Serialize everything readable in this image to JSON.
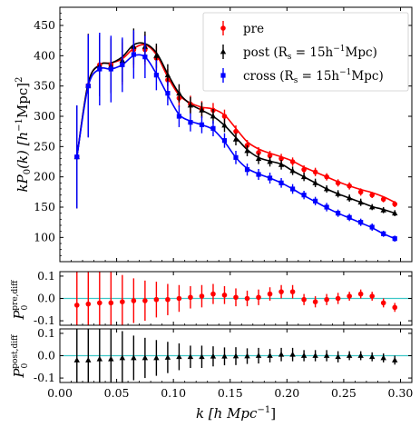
{
  "chart_data": [
    {
      "type": "line",
      "panel": "main",
      "xlabel": "k [h Mpc^-1]",
      "ylabel": "kP_0(k) [h^-1Mpc]^2",
      "xlim": [
        0.0,
        0.31
      ],
      "ylim": [
        60,
        480
      ],
      "x_ticks": [
        "0.00",
        "0.05",
        "0.10",
        "0.15",
        "0.20",
        "0.25",
        "0.30"
      ],
      "y_ticks": [
        "100",
        "150",
        "200",
        "250",
        "300",
        "350",
        "400",
        "450"
      ],
      "legend_position": "top-right",
      "series": [
        {
          "name": "pre",
          "marker": "circle",
          "color": "#ff0000",
          "x": [
            0.015,
            0.025,
            0.035,
            0.045,
            0.055,
            0.065,
            0.075,
            0.085,
            0.095,
            0.105,
            0.115,
            0.125,
            0.135,
            0.145,
            0.155,
            0.165,
            0.175,
            0.185,
            0.195,
            0.205,
            0.215,
            0.225,
            0.235,
            0.245,
            0.255,
            0.265,
            0.275,
            0.285,
            0.295
          ],
          "y": [
            233,
            351,
            385,
            385,
            387,
            410,
            410,
            396,
            360,
            330,
            320,
            312,
            310,
            300,
            275,
            252,
            240,
            235,
            230,
            225,
            212,
            208,
            200,
            190,
            185,
            175,
            170,
            163,
            155
          ],
          "err": [
            85,
            85,
            50,
            45,
            35,
            30,
            25,
            20,
            18,
            15,
            14,
            13,
            12,
            11,
            10,
            9,
            9,
            8,
            8,
            7,
            7,
            7,
            6,
            6,
            6,
            6,
            5,
            5,
            5
          ],
          "model": [
            233,
            355,
            385,
            388,
            395,
            412,
            418,
            402,
            365,
            335,
            322,
            315,
            312,
            302,
            280,
            258,
            246,
            239,
            233,
            226,
            216,
            208,
            200,
            192,
            185,
            179,
            174,
            167,
            158
          ]
        },
        {
          "name": "post (R_s = 15h^-1Mpc)",
          "marker": "triangle",
          "color": "#000000",
          "x": [
            0.015,
            0.025,
            0.035,
            0.045,
            0.055,
            0.065,
            0.075,
            0.085,
            0.095,
            0.105,
            0.115,
            0.125,
            0.135,
            0.145,
            0.155,
            0.165,
            0.175,
            0.185,
            0.195,
            0.205,
            0.215,
            0.225,
            0.235,
            0.245,
            0.255,
            0.265,
            0.275,
            0.285,
            0.295
          ],
          "y": [
            233,
            351,
            383,
            383,
            392,
            415,
            415,
            400,
            368,
            338,
            318,
            310,
            300,
            285,
            262,
            243,
            230,
            225,
            220,
            210,
            200,
            190,
            180,
            172,
            165,
            158,
            150,
            145,
            140
          ],
          "err": [
            85,
            85,
            50,
            45,
            35,
            30,
            25,
            20,
            18,
            15,
            14,
            13,
            12,
            11,
            10,
            9,
            9,
            8,
            8,
            7,
            7,
            7,
            6,
            6,
            6,
            6,
            5,
            5,
            5
          ],
          "model": [
            233,
            355,
            385,
            388,
            398,
            418,
            420,
            405,
            370,
            338,
            320,
            310,
            300,
            285,
            265,
            245,
            232,
            226,
            221,
            210,
            200,
            190,
            180,
            172,
            165,
            158,
            151,
            146,
            140
          ]
        },
        {
          "name": "cross (R_s = 15h^-1Mpc)",
          "marker": "square",
          "color": "#0000ff",
          "x": [
            0.015,
            0.025,
            0.035,
            0.045,
            0.055,
            0.065,
            0.075,
            0.085,
            0.095,
            0.105,
            0.115,
            0.125,
            0.135,
            0.145,
            0.155,
            0.165,
            0.175,
            0.185,
            0.195,
            0.205,
            0.215,
            0.225,
            0.235,
            0.245,
            0.255,
            0.265,
            0.275,
            0.285,
            0.295
          ],
          "y": [
            233,
            350,
            378,
            378,
            385,
            402,
            398,
            368,
            338,
            300,
            290,
            286,
            280,
            260,
            232,
            212,
            204,
            198,
            190,
            180,
            170,
            160,
            150,
            140,
            133,
            125,
            117,
            106,
            98
          ],
          "err": [
            85,
            85,
            60,
            55,
            45,
            40,
            35,
            25,
            20,
            18,
            15,
            14,
            13,
            12,
            11,
            10,
            9,
            9,
            8,
            8,
            7,
            7,
            7,
            6,
            6,
            6,
            6,
            5,
            5
          ],
          "model": [
            233,
            350,
            378,
            378,
            385,
            400,
            398,
            370,
            335,
            303,
            292,
            286,
            278,
            258,
            232,
            214,
            205,
            198,
            190,
            180,
            169,
            159,
            149,
            140,
            132,
            124,
            116,
            106,
            98
          ]
        }
      ]
    },
    {
      "type": "scatter",
      "panel": "residual-pre",
      "ylabel": "P_0^pre,diff",
      "ylim": [
        -0.12,
        0.12
      ],
      "y_ticks": [
        "0.1",
        "0.0",
        "-0.1"
      ],
      "reference_line": 0.0,
      "color": "#ff0000",
      "x": [
        0.015,
        0.025,
        0.035,
        0.045,
        0.055,
        0.065,
        0.075,
        0.085,
        0.095,
        0.105,
        0.115,
        0.125,
        0.135,
        0.145,
        0.155,
        0.165,
        0.175,
        0.185,
        0.195,
        0.205,
        0.215,
        0.225,
        0.235,
        0.245,
        0.255,
        0.265,
        0.275,
        0.285,
        0.295
      ],
      "y": [
        -0.03,
        -0.025,
        -0.02,
        -0.02,
        -0.015,
        -0.01,
        -0.01,
        -0.005,
        -0.005,
        0.0,
        0.005,
        0.01,
        0.02,
        0.015,
        0.005,
        0.0,
        0.005,
        0.02,
        0.03,
        0.03,
        -0.005,
        -0.015,
        -0.005,
        0.0,
        0.01,
        0.02,
        0.01,
        -0.02,
        -0.04
      ],
      "err": [
        0.3,
        0.25,
        0.2,
        0.18,
        0.12,
        0.1,
        0.09,
        0.08,
        0.07,
        0.06,
        0.05,
        0.05,
        0.045,
        0.04,
        0.04,
        0.035,
        0.035,
        0.03,
        0.03,
        0.03,
        0.025,
        0.025,
        0.025,
        0.025,
        0.02,
        0.02,
        0.02,
        0.02,
        0.02
      ]
    },
    {
      "type": "scatter",
      "panel": "residual-post",
      "ylabel": "P_0^post,diff",
      "xlabel": "k [h Mpc^-1]",
      "xlim": [
        0.0,
        0.31
      ],
      "x_ticks": [
        "0.00",
        "0.05",
        "0.10",
        "0.15",
        "0.20",
        "0.25",
        "0.30"
      ],
      "ylim": [
        -0.12,
        0.12
      ],
      "y_ticks": [
        "0.1",
        "0.0",
        "-0.1"
      ],
      "reference_line": 0.0,
      "color": "#000000",
      "x": [
        0.015,
        0.025,
        0.035,
        0.045,
        0.055,
        0.065,
        0.075,
        0.085,
        0.095,
        0.105,
        0.115,
        0.125,
        0.135,
        0.145,
        0.155,
        0.165,
        0.175,
        0.185,
        0.195,
        0.205,
        0.215,
        0.225,
        0.235,
        0.245,
        0.255,
        0.265,
        0.275,
        0.285,
        0.295
      ],
      "y": [
        -0.02,
        -0.02,
        -0.015,
        -0.015,
        -0.01,
        -0.01,
        -0.01,
        -0.01,
        -0.008,
        -0.005,
        -0.005,
        -0.005,
        -0.003,
        -0.003,
        -0.002,
        -0.002,
        0.0,
        0.0,
        0.005,
        0.005,
        0.0,
        0.0,
        0.0,
        -0.005,
        0.0,
        0.0,
        -0.005,
        -0.01,
        -0.02
      ],
      "err": [
        0.3,
        0.25,
        0.2,
        0.18,
        0.12,
        0.1,
        0.09,
        0.08,
        0.07,
        0.06,
        0.05,
        0.05,
        0.045,
        0.04,
        0.04,
        0.035,
        0.035,
        0.03,
        0.03,
        0.03,
        0.025,
        0.025,
        0.025,
        0.025,
        0.02,
        0.02,
        0.02,
        0.02,
        0.02
      ]
    }
  ],
  "legend": [
    {
      "label": "pre",
      "marker": "circle",
      "color": "#ff0000"
    },
    {
      "label": "post (R",
      "sub": "s",
      "tail": " = 15h",
      "sup": "−1",
      "end": "Mpc)",
      "marker": "triangle",
      "color": "#000000"
    },
    {
      "label": "cross (R",
      "sub": "s",
      "tail": " = 15h",
      "sup": "−1",
      "end": "Mpc)",
      "marker": "square",
      "color": "#0000ff"
    }
  ],
  "labels": {
    "xlabel": "k [h Mpc",
    "xlabel_sup": "−1",
    "xlabel_end": "]",
    "ylabel_main": "kP",
    "ylabel_main_sub": "0",
    "ylabel_main_tail": "(k) [h",
    "ylabel_main_sup": "−1",
    "ylabel_main_end": "Mpc]",
    "ylabel_main_sup2": "2",
    "ylabel_r1": "P",
    "ylabel_r1_sub": "0",
    "ylabel_r1_sup": "pre,diff",
    "ylabel_r2": "P",
    "ylabel_r2_sub": "0",
    "ylabel_r2_sup": "post,diff"
  },
  "colors": {
    "reference_line": "#3ec8c8"
  }
}
